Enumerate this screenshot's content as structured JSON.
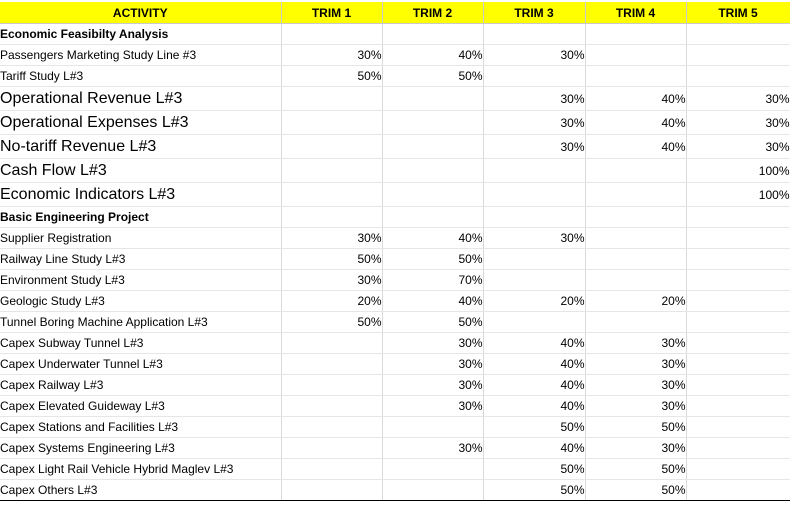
{
  "headers": [
    "ACTIVITY",
    "TRIM 1",
    "TRIM 2",
    "TRIM 3",
    "TRIM 4",
    "TRIM 5"
  ],
  "rows": [
    {
      "activity": "Economic Feasibilty Analysis",
      "values": [
        "",
        "",
        "",
        "",
        ""
      ],
      "kind": "section",
      "size": "sm"
    },
    {
      "activity": "Passengers Marketing Study Line #3",
      "values": [
        "30%",
        "40%",
        "30%",
        "",
        ""
      ],
      "kind": "item",
      "size": "sm"
    },
    {
      "activity": "Tariff Study L#3",
      "values": [
        "50%",
        "50%",
        "",
        "",
        ""
      ],
      "kind": "item",
      "size": "sm"
    },
    {
      "activity": "Operational Revenue L#3",
      "values": [
        "",
        "",
        "30%",
        "40%",
        "30%"
      ],
      "kind": "item",
      "size": "lg"
    },
    {
      "activity": "Operational  Expenses L#3",
      "values": [
        "",
        "",
        "30%",
        "40%",
        "30%"
      ],
      "kind": "item",
      "size": "lg"
    },
    {
      "activity": "No-tariff Revenue L#3",
      "values": [
        "",
        "",
        "30%",
        "40%",
        "30%"
      ],
      "kind": "item",
      "size": "lg"
    },
    {
      "activity": "Cash Flow L#3",
      "values": [
        "",
        "",
        "",
        "",
        "100%"
      ],
      "kind": "item",
      "size": "lg"
    },
    {
      "activity": "Economic Indicators L#3",
      "values": [
        "",
        "",
        "",
        "",
        "100%"
      ],
      "kind": "item",
      "size": "lg"
    },
    {
      "activity": "Basic Engineering Project",
      "values": [
        "",
        "",
        "",
        "",
        ""
      ],
      "kind": "section",
      "size": "sm",
      "separator": true
    },
    {
      "activity": "Supplier Registration",
      "values": [
        "30%",
        "40%",
        "30%",
        "",
        ""
      ],
      "kind": "item",
      "size": "sm"
    },
    {
      "activity": "Railway Line Study L#3",
      "values": [
        "50%",
        "50%",
        "",
        "",
        ""
      ],
      "kind": "item",
      "size": "sm"
    },
    {
      "activity": "Environment Study L#3",
      "values": [
        "30%",
        "70%",
        "",
        "",
        ""
      ],
      "kind": "item",
      "size": "sm"
    },
    {
      "activity": "Geologic Study L#3",
      "values": [
        "20%",
        "40%",
        "20%",
        "20%",
        ""
      ],
      "kind": "item",
      "size": "sm"
    },
    {
      "activity": "Tunnel Boring Machine Application L#3",
      "values": [
        "50%",
        "50%",
        "",
        "",
        ""
      ],
      "kind": "item",
      "size": "sm"
    },
    {
      "activity": "Capex Subway Tunnel L#3",
      "values": [
        "",
        "30%",
        "40%",
        "30%",
        ""
      ],
      "kind": "item",
      "size": "sm"
    },
    {
      "activity": "Capex Underwater Tunnel L#3",
      "values": [
        "",
        "30%",
        "40%",
        "30%",
        ""
      ],
      "kind": "item",
      "size": "sm"
    },
    {
      "activity": "Capex Railway L#3",
      "values": [
        "",
        "30%",
        "40%",
        "30%",
        ""
      ],
      "kind": "item",
      "size": "sm"
    },
    {
      "activity": "Capex Elevated Guideway L#3",
      "values": [
        "",
        "30%",
        "40%",
        "30%",
        ""
      ],
      "kind": "item",
      "size": "sm"
    },
    {
      "activity": "Capex Stations and Facilities L#3",
      "values": [
        "",
        "",
        "50%",
        "50%",
        ""
      ],
      "kind": "item",
      "size": "sm"
    },
    {
      "activity": "Capex Systems Engineering L#3",
      "values": [
        "",
        "30%",
        "40%",
        "30%",
        ""
      ],
      "kind": "item",
      "size": "sm"
    },
    {
      "activity": "Capex Light Rail Vehicle Hybrid Maglev L#3",
      "values": [
        "",
        "",
        "50%",
        "50%",
        ""
      ],
      "kind": "item",
      "size": "sm"
    },
    {
      "activity": "Capex Others L#3",
      "values": [
        "",
        "",
        "50%",
        "50%",
        ""
      ],
      "kind": "item",
      "size": "sm",
      "last": true
    }
  ]
}
